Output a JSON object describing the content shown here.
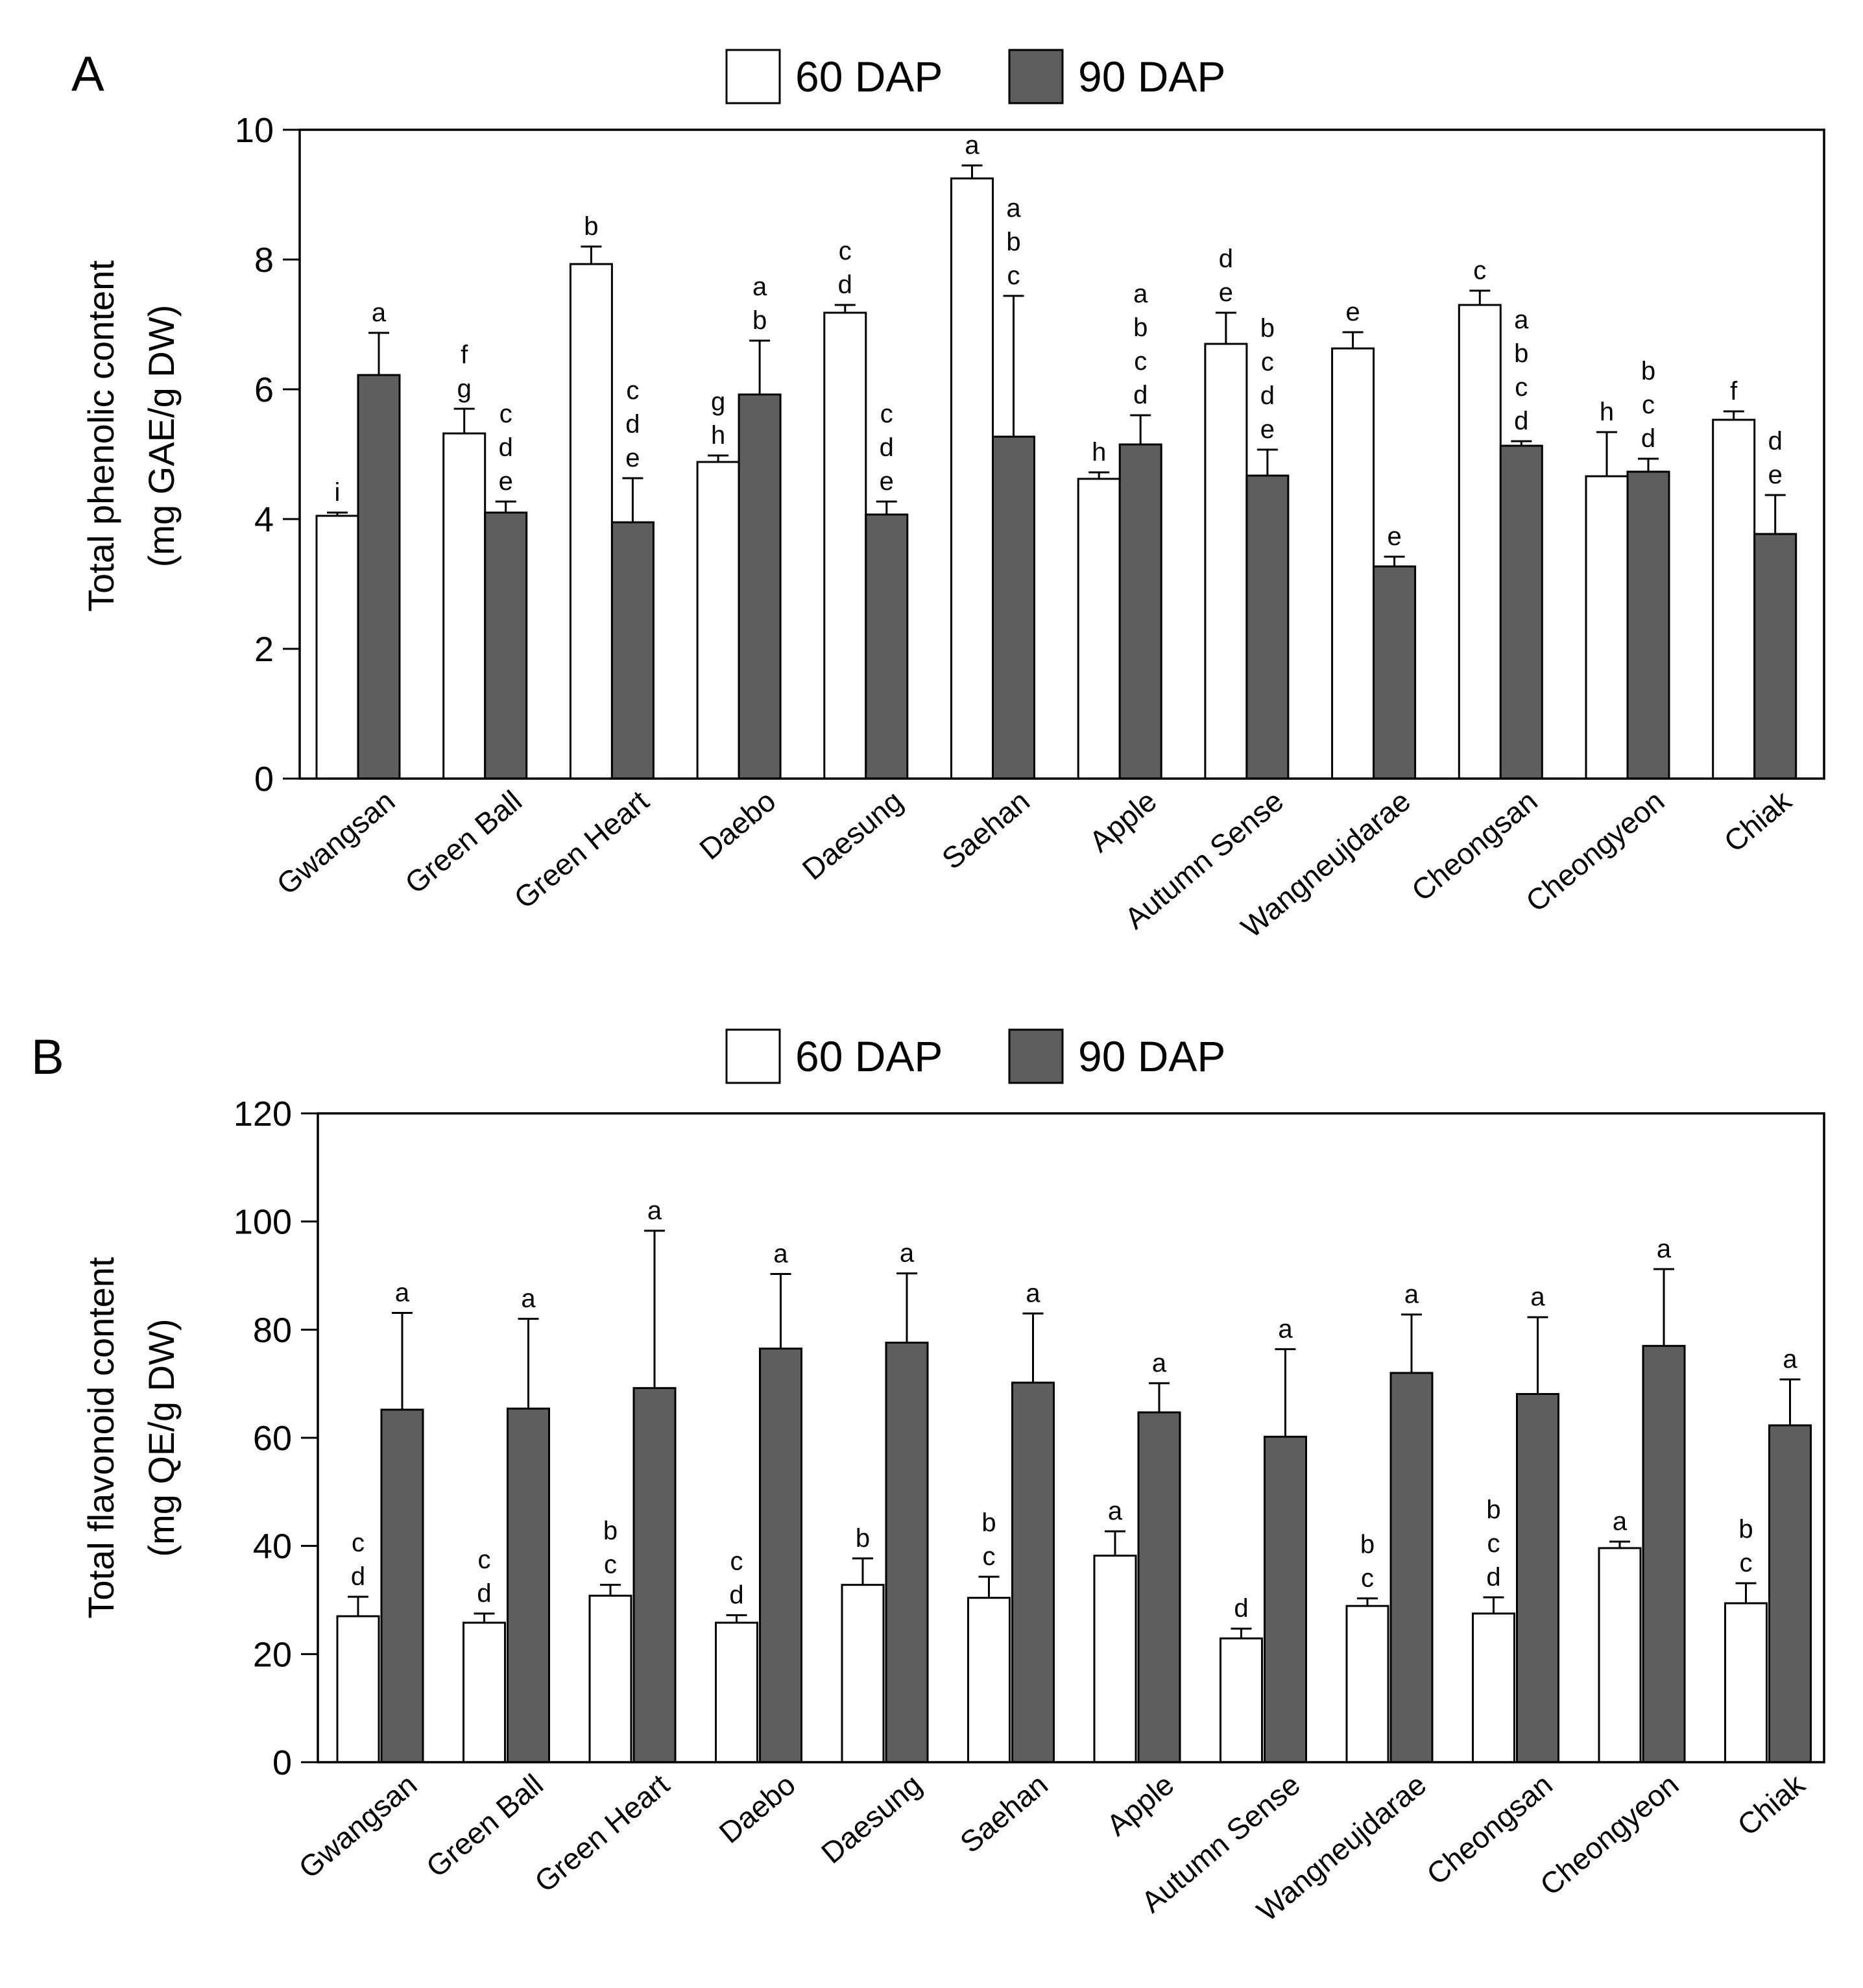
{
  "chart_data": [
    {
      "type": "bar",
      "panel_label": "A",
      "title": "",
      "xlabel": "",
      "ylabel": [
        "Total phenolic content",
        "(mg GAE/g DW)"
      ],
      "ylim": [
        0,
        10
      ],
      "yticks": [
        "0",
        "2",
        "4",
        "6",
        "8",
        "10"
      ],
      "ytick_values": [
        0,
        2,
        4,
        6,
        8,
        10
      ],
      "grid": false,
      "legend_position": "top-center",
      "categories": [
        "Gwangsan",
        "Green Ball",
        "Green Heart",
        "Daebo",
        "Daesung",
        "Saehan",
        "Apple",
        "Autumn Sense",
        "Wangneujdarae",
        "Cheongsan",
        "Cheongyeon",
        "Chiak"
      ],
      "series": [
        {
          "name": "60 DAP",
          "fill": "#ffffff",
          "values": [
            4.05,
            5.32,
            7.93,
            4.88,
            7.18,
            9.25,
            4.62,
            6.7,
            6.63,
            7.3,
            4.66,
            5.53
          ],
          "errors": [
            0.05,
            0.38,
            0.27,
            0.1,
            0.12,
            0.2,
            0.1,
            0.48,
            0.25,
            0.22,
            0.68,
            0.13
          ],
          "letters": [
            "i",
            "f\ng",
            "b",
            "g\nh",
            "c\nd",
            "a",
            "h",
            "d\ne",
            "e",
            "c",
            "h",
            "f"
          ]
        },
        {
          "name": "90 DAP",
          "fill": "#5e5e5e",
          "values": [
            6.22,
            4.1,
            3.95,
            5.92,
            4.07,
            5.27,
            5.15,
            4.67,
            3.27,
            5.13,
            4.73,
            3.77
          ],
          "errors": [
            0.65,
            0.17,
            0.68,
            0.83,
            0.2,
            2.17,
            0.45,
            0.4,
            0.15,
            0.07,
            0.2,
            0.6
          ],
          "letters": [
            "a",
            "c\nd\ne",
            "c\nd\ne",
            "a\nb",
            "c\nd\ne",
            "a\nb\nc",
            "a\nb\nc\nd",
            "b\nc\nd\ne",
            "e",
            "a\nb\nc\nd",
            "b\nc\nd",
            "d\ne"
          ]
        }
      ]
    },
    {
      "type": "bar",
      "panel_label": "B",
      "title": "",
      "xlabel": "",
      "ylabel": [
        "Total flavonoid content",
        "(mg QE/g DW)"
      ],
      "ylim": [
        0,
        120
      ],
      "yticks": [
        "0",
        "20",
        "40",
        "60",
        "80",
        "100",
        "120"
      ],
      "ytick_values": [
        0,
        20,
        40,
        60,
        80,
        100,
        120
      ],
      "grid": false,
      "legend_position": "top-center",
      "categories": [
        "Gwangsan",
        "Green Ball",
        "Green Heart",
        "Daebo",
        "Daesung",
        "Saehan",
        "Apple",
        "Autumn Sense",
        "Wangneujdarae",
        "Cheongsan",
        "Cheongyeon",
        "Chiak"
      ],
      "series": [
        {
          "name": "60 DAP",
          "fill": "#ffffff",
          "values": [
            27.0,
            25.8,
            30.8,
            25.8,
            32.8,
            30.4,
            38.2,
            22.9,
            28.9,
            27.5,
            39.6,
            29.4
          ],
          "errors": [
            3.6,
            1.7,
            2.0,
            1.4,
            4.9,
            3.9,
            4.5,
            1.8,
            1.4,
            3.0,
            1.2,
            3.7
          ],
          "letters": [
            "c\nd",
            "c\nd",
            "b\nc",
            "c\nd",
            "b",
            "b\nc",
            "a",
            "d",
            "b\nc",
            "b\nc\nd",
            "a",
            "b\nc"
          ]
        },
        {
          "name": "90 DAP",
          "fill": "#5e5e5e",
          "values": [
            65.2,
            65.4,
            69.2,
            76.5,
            77.6,
            70.2,
            64.7,
            60.2,
            72.0,
            68.1,
            77.0,
            62.3
          ],
          "errors": [
            17.9,
            16.6,
            29.1,
            13.8,
            12.8,
            12.8,
            5.4,
            16.2,
            10.8,
            14.2,
            14.2,
            8.5
          ],
          "letters": [
            "a",
            "a",
            "a",
            "a",
            "a",
            "a",
            "a",
            "a",
            "a",
            "a",
            "a",
            "a"
          ]
        }
      ]
    }
  ]
}
